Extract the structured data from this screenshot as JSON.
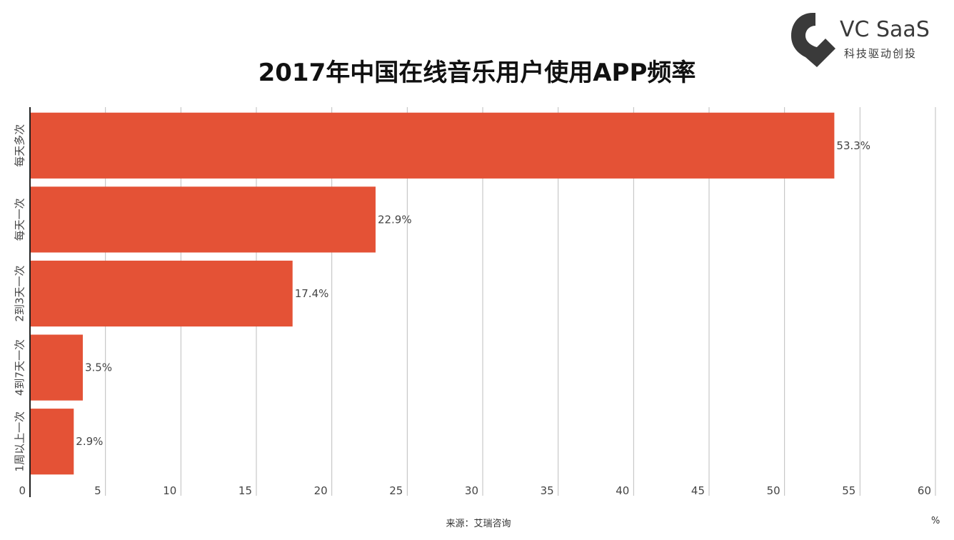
{
  "title": "2017年中国在线音乐用户使用APP频率",
  "logo": {
    "name": "VC SaaS",
    "tagline": "科技驱动创投"
  },
  "source": "来源：艾瑞咨询",
  "unit": "%",
  "colors": {
    "bar": "#e45236",
    "grid": "#bdbdbd",
    "axis": "#222222",
    "text": "#444444",
    "logo": "#3a3a3a"
  },
  "chart_data": {
    "type": "bar",
    "orientation": "horizontal",
    "categories": [
      "每天多次",
      "每天一次",
      "2到3天一次",
      "4到7天一次",
      "1周以上一次"
    ],
    "values": [
      53.3,
      22.9,
      17.4,
      3.5,
      2.9
    ],
    "value_labels": [
      "53.3%",
      "22.9%",
      "17.4%",
      "3.5%",
      "2.9%"
    ],
    "title": "2017年中国在线音乐用户使用APP频率",
    "xlim": [
      0,
      60
    ],
    "xticks": [
      0,
      5,
      10,
      15,
      20,
      25,
      30,
      35,
      40,
      45,
      50,
      55,
      60
    ],
    "grid": true
  }
}
